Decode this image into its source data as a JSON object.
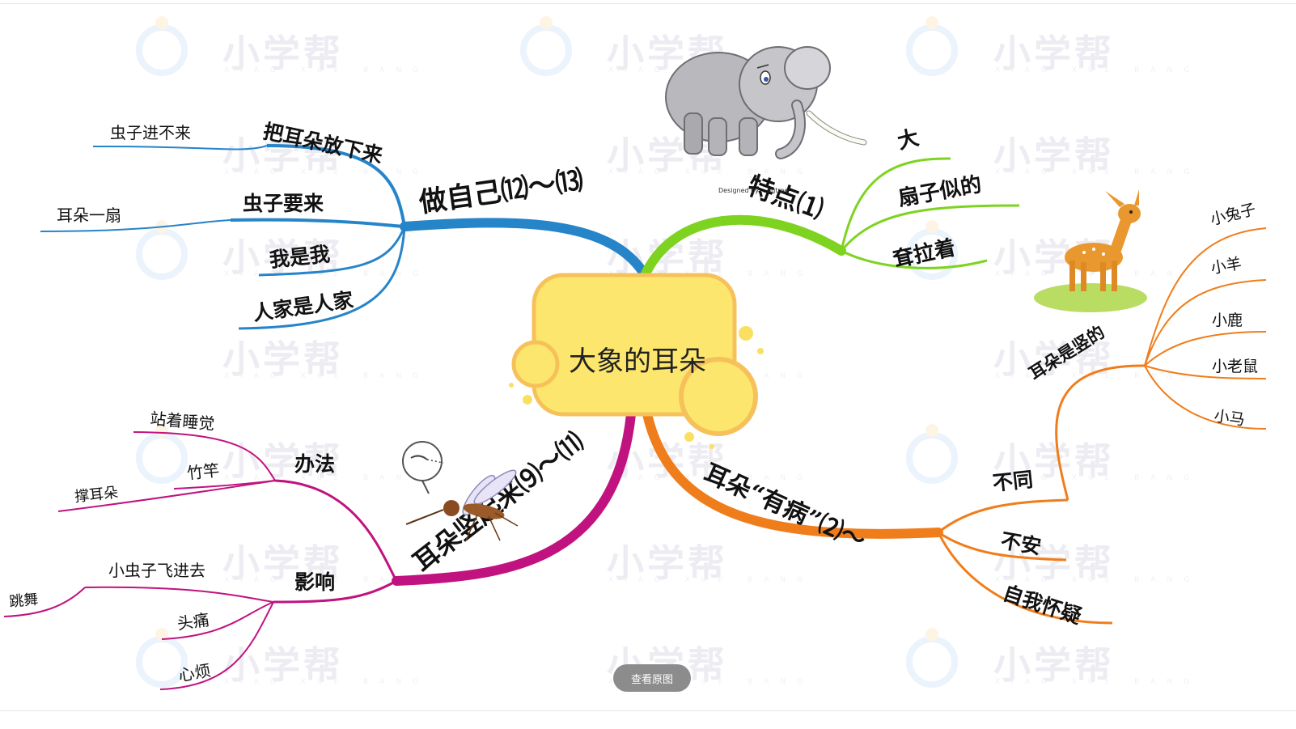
{
  "center": {
    "label": "大象的耳朵"
  },
  "branches": {
    "b1": {
      "label": "做自己⑿～⒀",
      "color": "#2684c9",
      "children": [
        {
          "label": "把耳朵放下来",
          "sub": [
            "虫子进不来"
          ]
        },
        {
          "label": "虫子要来",
          "sub": [
            "耳朵一扇"
          ]
        },
        {
          "label": "我是我"
        },
        {
          "label": "人家是人家"
        }
      ]
    },
    "b2": {
      "label": "特点⑴",
      "color": "#7ed321",
      "children": [
        {
          "label": "大"
        },
        {
          "label": "扇子似的"
        },
        {
          "label": "耷拉着"
        }
      ]
    },
    "b3": {
      "label": "耳朵竖起来⑼～⑾",
      "color": "#c0137f",
      "children": [
        {
          "label": "办法",
          "sub": [
            "站着睡觉",
            "竹竿",
            "撑耳朵"
          ]
        },
        {
          "label": "影响",
          "sub": [
            "小虫子飞进去",
            "跳舞",
            "头痛",
            "心烦"
          ]
        }
      ]
    },
    "b4": {
      "label": "耳朵“有病”⑵～",
      "color": "#f07d1b",
      "children": [
        {
          "label": "不同"
        },
        {
          "label": "耳朵是竖的",
          "sub": [
            "小兔子",
            "小羊",
            "小鹿",
            "小老鼠",
            "小马"
          ]
        },
        {
          "label": "不安"
        },
        {
          "label": "自我怀疑"
        }
      ]
    }
  },
  "watermark": {
    "text": "小学帮",
    "subtext": "XIAO XUE BANG"
  },
  "image_credit": "Designed by ...ngtree",
  "view_original_button": "查看原图"
}
